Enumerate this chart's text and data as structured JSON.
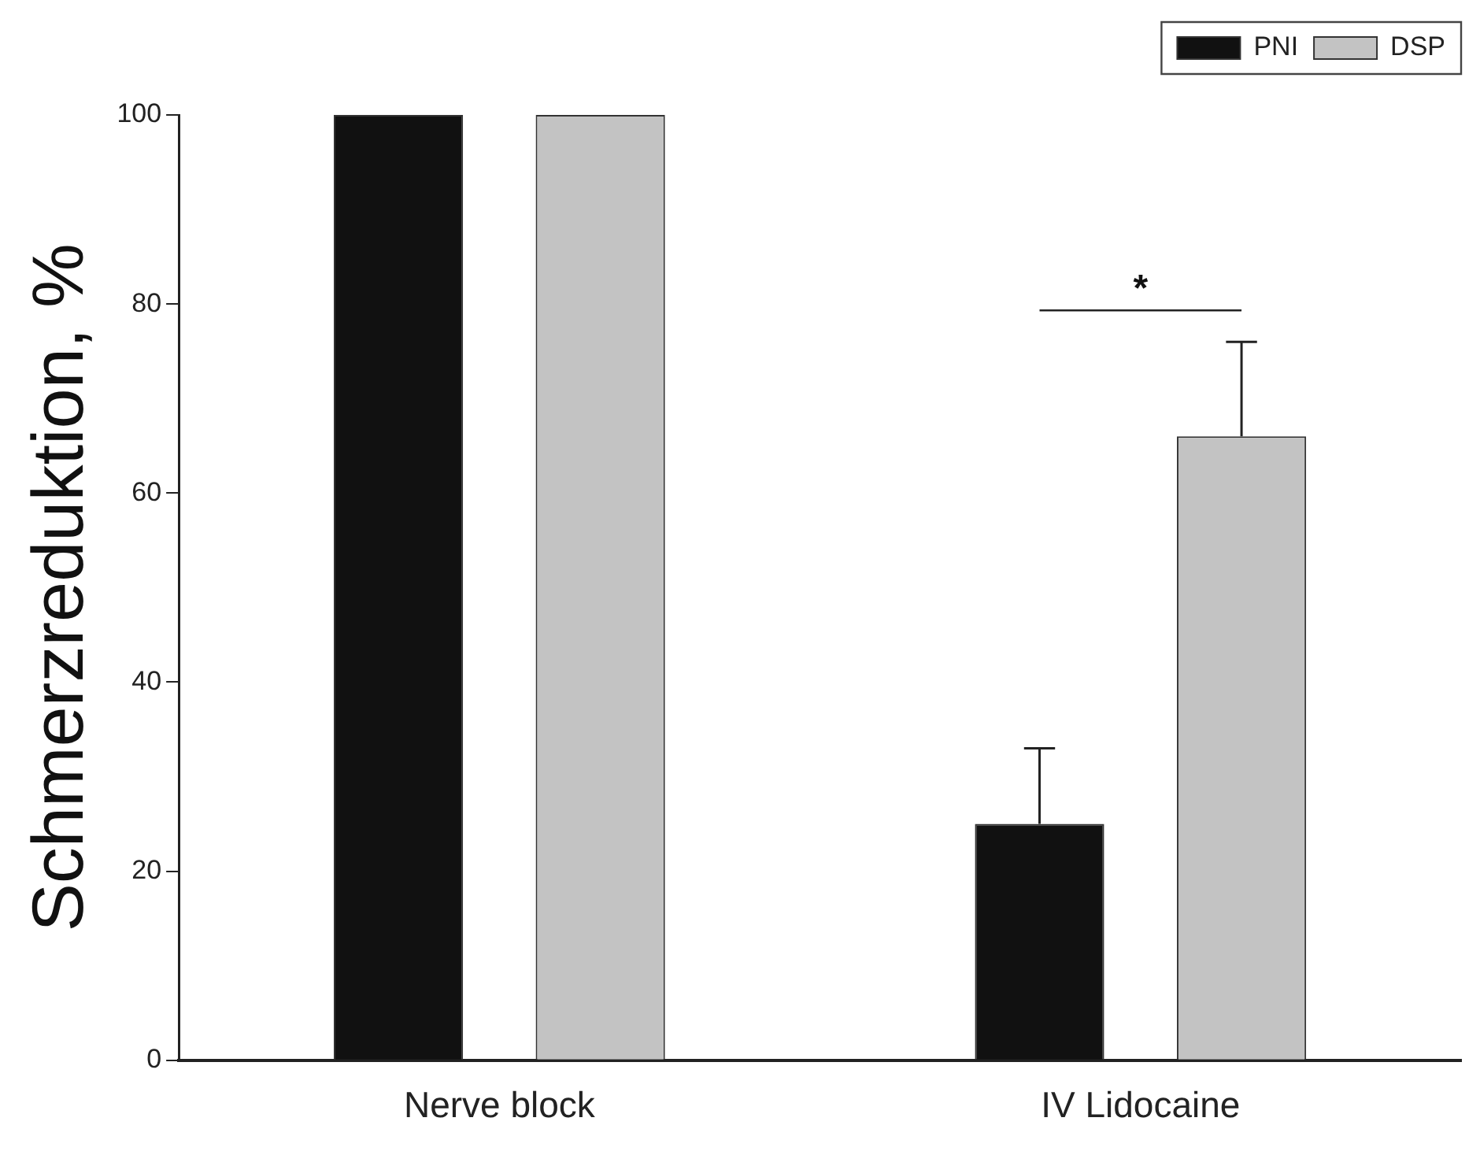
{
  "chart_data": {
    "type": "bar",
    "ylabel": "Schmerzreduktion, %",
    "categories": [
      "Nerve block",
      "IV Lidocaine"
    ],
    "series": [
      {
        "name": "PNI",
        "color": "#111111",
        "values": [
          100,
          25
        ],
        "errors": [
          null,
          [
            25,
            33
          ]
        ]
      },
      {
        "name": "DSP",
        "color": "#c3c3c3",
        "values": [
          100,
          66
        ],
        "errors": [
          null,
          [
            66,
            76
          ]
        ]
      }
    ],
    "ylim": [
      0,
      100
    ],
    "yticks": [
      0,
      20,
      40,
      60,
      80,
      100
    ],
    "grid": false,
    "legend": "top right",
    "annotations": [
      "*"
    ]
  }
}
